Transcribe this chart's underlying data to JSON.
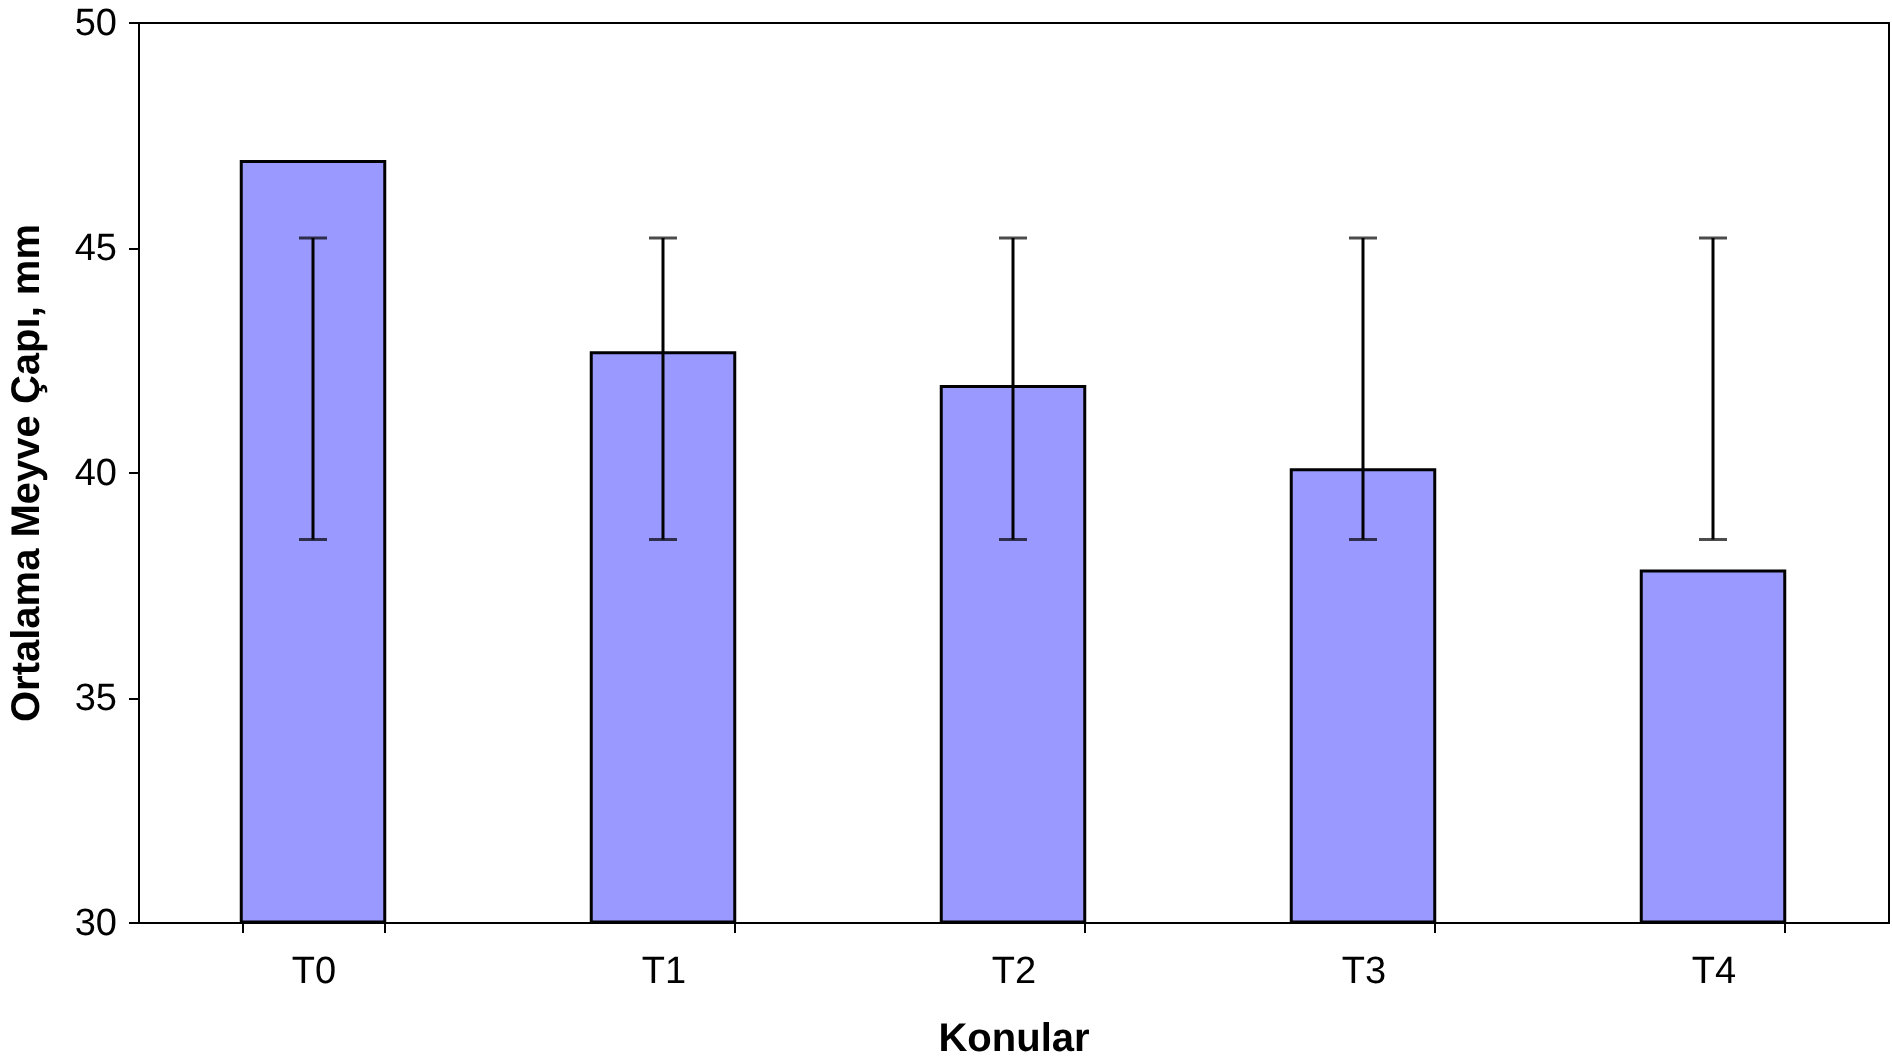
{
  "chart_data": {
    "type": "bar",
    "xlabel": "Konular",
    "ylabel": "Ortalama Meyve Çapı, mm",
    "categories": [
      "T0",
      "T1",
      "T2",
      "T3",
      "T4"
    ],
    "values": [
      46.9,
      42.65,
      41.9,
      40.05,
      37.8
    ],
    "errors": [
      [
        38.5,
        45.2
      ],
      [
        38.5,
        45.2
      ],
      [
        38.5,
        45.2
      ],
      [
        38.5,
        45.2
      ],
      [
        38.5,
        45.2
      ]
    ],
    "color": "#9999ff",
    "ylim": [
      30,
      50
    ],
    "yticks": [
      30,
      35,
      40,
      45,
      50
    ],
    "grid": false
  }
}
